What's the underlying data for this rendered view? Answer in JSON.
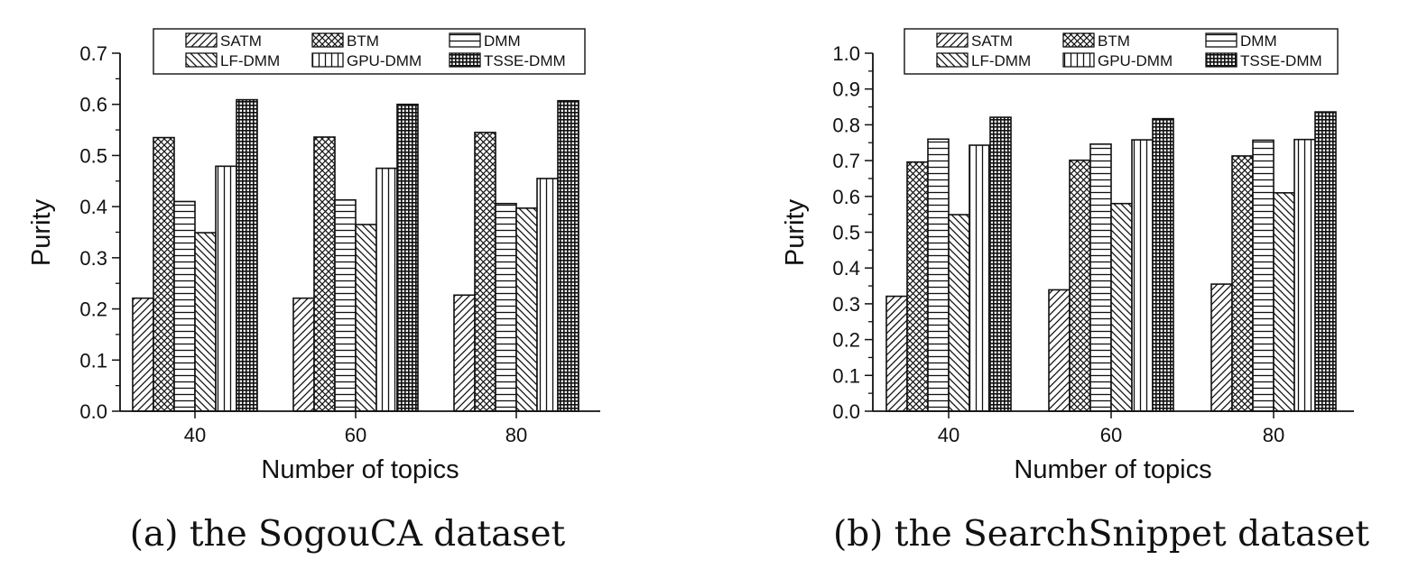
{
  "chart_data": [
    {
      "type": "bar",
      "caption": "(a) the SogouCA dataset",
      "xlabel": "Number of topics",
      "ylabel": "Purity",
      "categories": [
        "40",
        "60",
        "80"
      ],
      "ylim": [
        0.0,
        0.7
      ],
      "yticks": [
        "0.0",
        "0.1",
        "0.2",
        "0.3",
        "0.4",
        "0.5",
        "0.6",
        "0.7"
      ],
      "legend_position": "top",
      "series": [
        {
          "name": "SATM",
          "pattern": "diag-right",
          "values": [
            0.221,
            0.221,
            0.227
          ]
        },
        {
          "name": "BTM",
          "pattern": "crosshatch",
          "values": [
            0.535,
            0.536,
            0.545
          ]
        },
        {
          "name": "DMM",
          "pattern": "horizontal",
          "values": [
            0.41,
            0.413,
            0.406
          ]
        },
        {
          "name": "LF-DMM",
          "pattern": "diag-left",
          "values": [
            0.349,
            0.365,
            0.397
          ]
        },
        {
          "name": "GPU-DMM",
          "pattern": "vertical",
          "values": [
            0.479,
            0.475,
            0.455
          ]
        },
        {
          "name": "TSSE-DMM",
          "pattern": "dense-grid",
          "values": [
            0.609,
            0.6,
            0.607
          ]
        }
      ]
    },
    {
      "type": "bar",
      "caption": "(b) the SearchSnippet dataset",
      "xlabel": "Number of topics",
      "ylabel": "Purity",
      "categories": [
        "40",
        "60",
        "80"
      ],
      "ylim": [
        0.0,
        1.0
      ],
      "yticks": [
        "0.0",
        "0.1",
        "0.2",
        "0.3",
        "0.4",
        "0.5",
        "0.6",
        "0.7",
        "0.8",
        "0.9",
        "1.0"
      ],
      "legend_position": "top",
      "series": [
        {
          "name": "SATM",
          "pattern": "diag-right",
          "values": [
            0.321,
            0.339,
            0.355
          ]
        },
        {
          "name": "BTM",
          "pattern": "crosshatch",
          "values": [
            0.696,
            0.701,
            0.713
          ]
        },
        {
          "name": "DMM",
          "pattern": "horizontal",
          "values": [
            0.76,
            0.746,
            0.757
          ]
        },
        {
          "name": "LF-DMM",
          "pattern": "diag-left",
          "values": [
            0.549,
            0.58,
            0.61
          ]
        },
        {
          "name": "GPU-DMM",
          "pattern": "vertical",
          "values": [
            0.743,
            0.758,
            0.759
          ]
        },
        {
          "name": "TSSE-DMM",
          "pattern": "dense-grid",
          "values": [
            0.821,
            0.817,
            0.836
          ]
        }
      ]
    }
  ],
  "colors": {
    "ink": "#111111",
    "bar_fill": "#ffffff"
  }
}
